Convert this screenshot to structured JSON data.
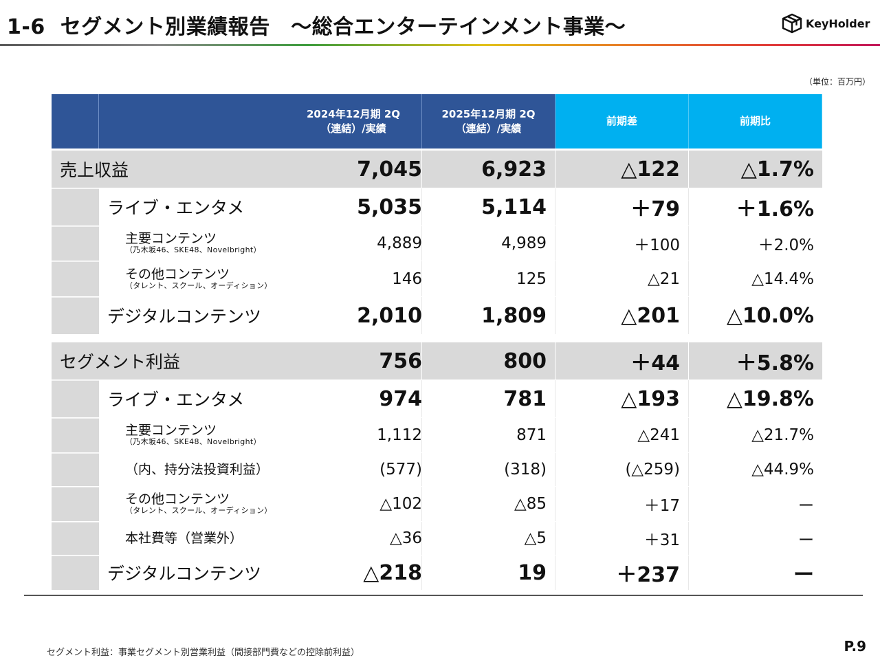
{
  "title": {
    "number": "1-6",
    "text": "セグメント別業績報告　～総合エンターテインメント事業～"
  },
  "logo": {
    "name": "KeyHolder",
    "icon": "cube-icon"
  },
  "unit": "（単位：百万円）",
  "table": {
    "headers": {
      "col_2024_line1": "2024年12月期 2Q",
      "col_2024_line2": "（連結）/実績",
      "col_2025_line1": "2025年12月期 2Q",
      "col_2025_line2": "（連結）/実績",
      "diff": "前期差",
      "ratio": "前期比"
    },
    "rows": [
      {
        "label": "売上収益",
        "sub": "",
        "v2024": "7,045",
        "v2025": "6,923",
        "diff": "△122",
        "ratio": "△1.7%"
      },
      {
        "label": "ライブ・エンタメ",
        "sub": "",
        "v2024": "5,035",
        "v2025": "5,114",
        "diff": "＋79",
        "ratio": "＋1.6%"
      },
      {
        "label": "主要コンテンツ",
        "sub": "（乃木坂46、SKE48、Novelbright）",
        "v2024": "4,889",
        "v2025": "4,989",
        "diff": "＋100",
        "ratio": "＋2.0%"
      },
      {
        "label": "その他コンテンツ",
        "sub": "（タレント、スクール、オーディション）",
        "v2024": "146",
        "v2025": "125",
        "diff": "△21",
        "ratio": "△14.4%"
      },
      {
        "label": "デジタルコンテンツ",
        "sub": "",
        "v2024": "2,010",
        "v2025": "1,809",
        "diff": "△201",
        "ratio": "△10.0%"
      },
      {
        "label": "セグメント利益",
        "sub": "",
        "v2024": "756",
        "v2025": "800",
        "diff": "＋44",
        "ratio": "＋5.8%"
      },
      {
        "label": "ライブ・エンタメ",
        "sub": "",
        "v2024": "974",
        "v2025": "781",
        "diff": "△193",
        "ratio": "△19.8%"
      },
      {
        "label": "主要コンテンツ",
        "sub": "（乃木坂46、SKE48、Novelbright）",
        "v2024": "1,112",
        "v2025": "871",
        "diff": "△241",
        "ratio": "△21.7%"
      },
      {
        "label": "（内、持分法投資利益）",
        "sub": "",
        "v2024": "(577)",
        "v2025": "(318)",
        "diff": "(△259)",
        "ratio": "△44.9%"
      },
      {
        "label": "その他コンテンツ",
        "sub": "（タレント、スクール、オーディション）",
        "v2024": "△102",
        "v2025": "△85",
        "diff": "＋17",
        "ratio": "ー"
      },
      {
        "label": "本社費等（営業外）",
        "sub": "",
        "v2024": "△36",
        "v2025": "△5",
        "diff": "＋31",
        "ratio": "ー"
      },
      {
        "label": "デジタルコンテンツ",
        "sub": "",
        "v2024": "△218",
        "v2025": "19",
        "diff": "＋237",
        "ratio": "ー"
      }
    ]
  },
  "footnote": "セグメント利益：事業セグメント別営業利益（間接部門費などの控除前利益）",
  "page_number": "P.9"
}
